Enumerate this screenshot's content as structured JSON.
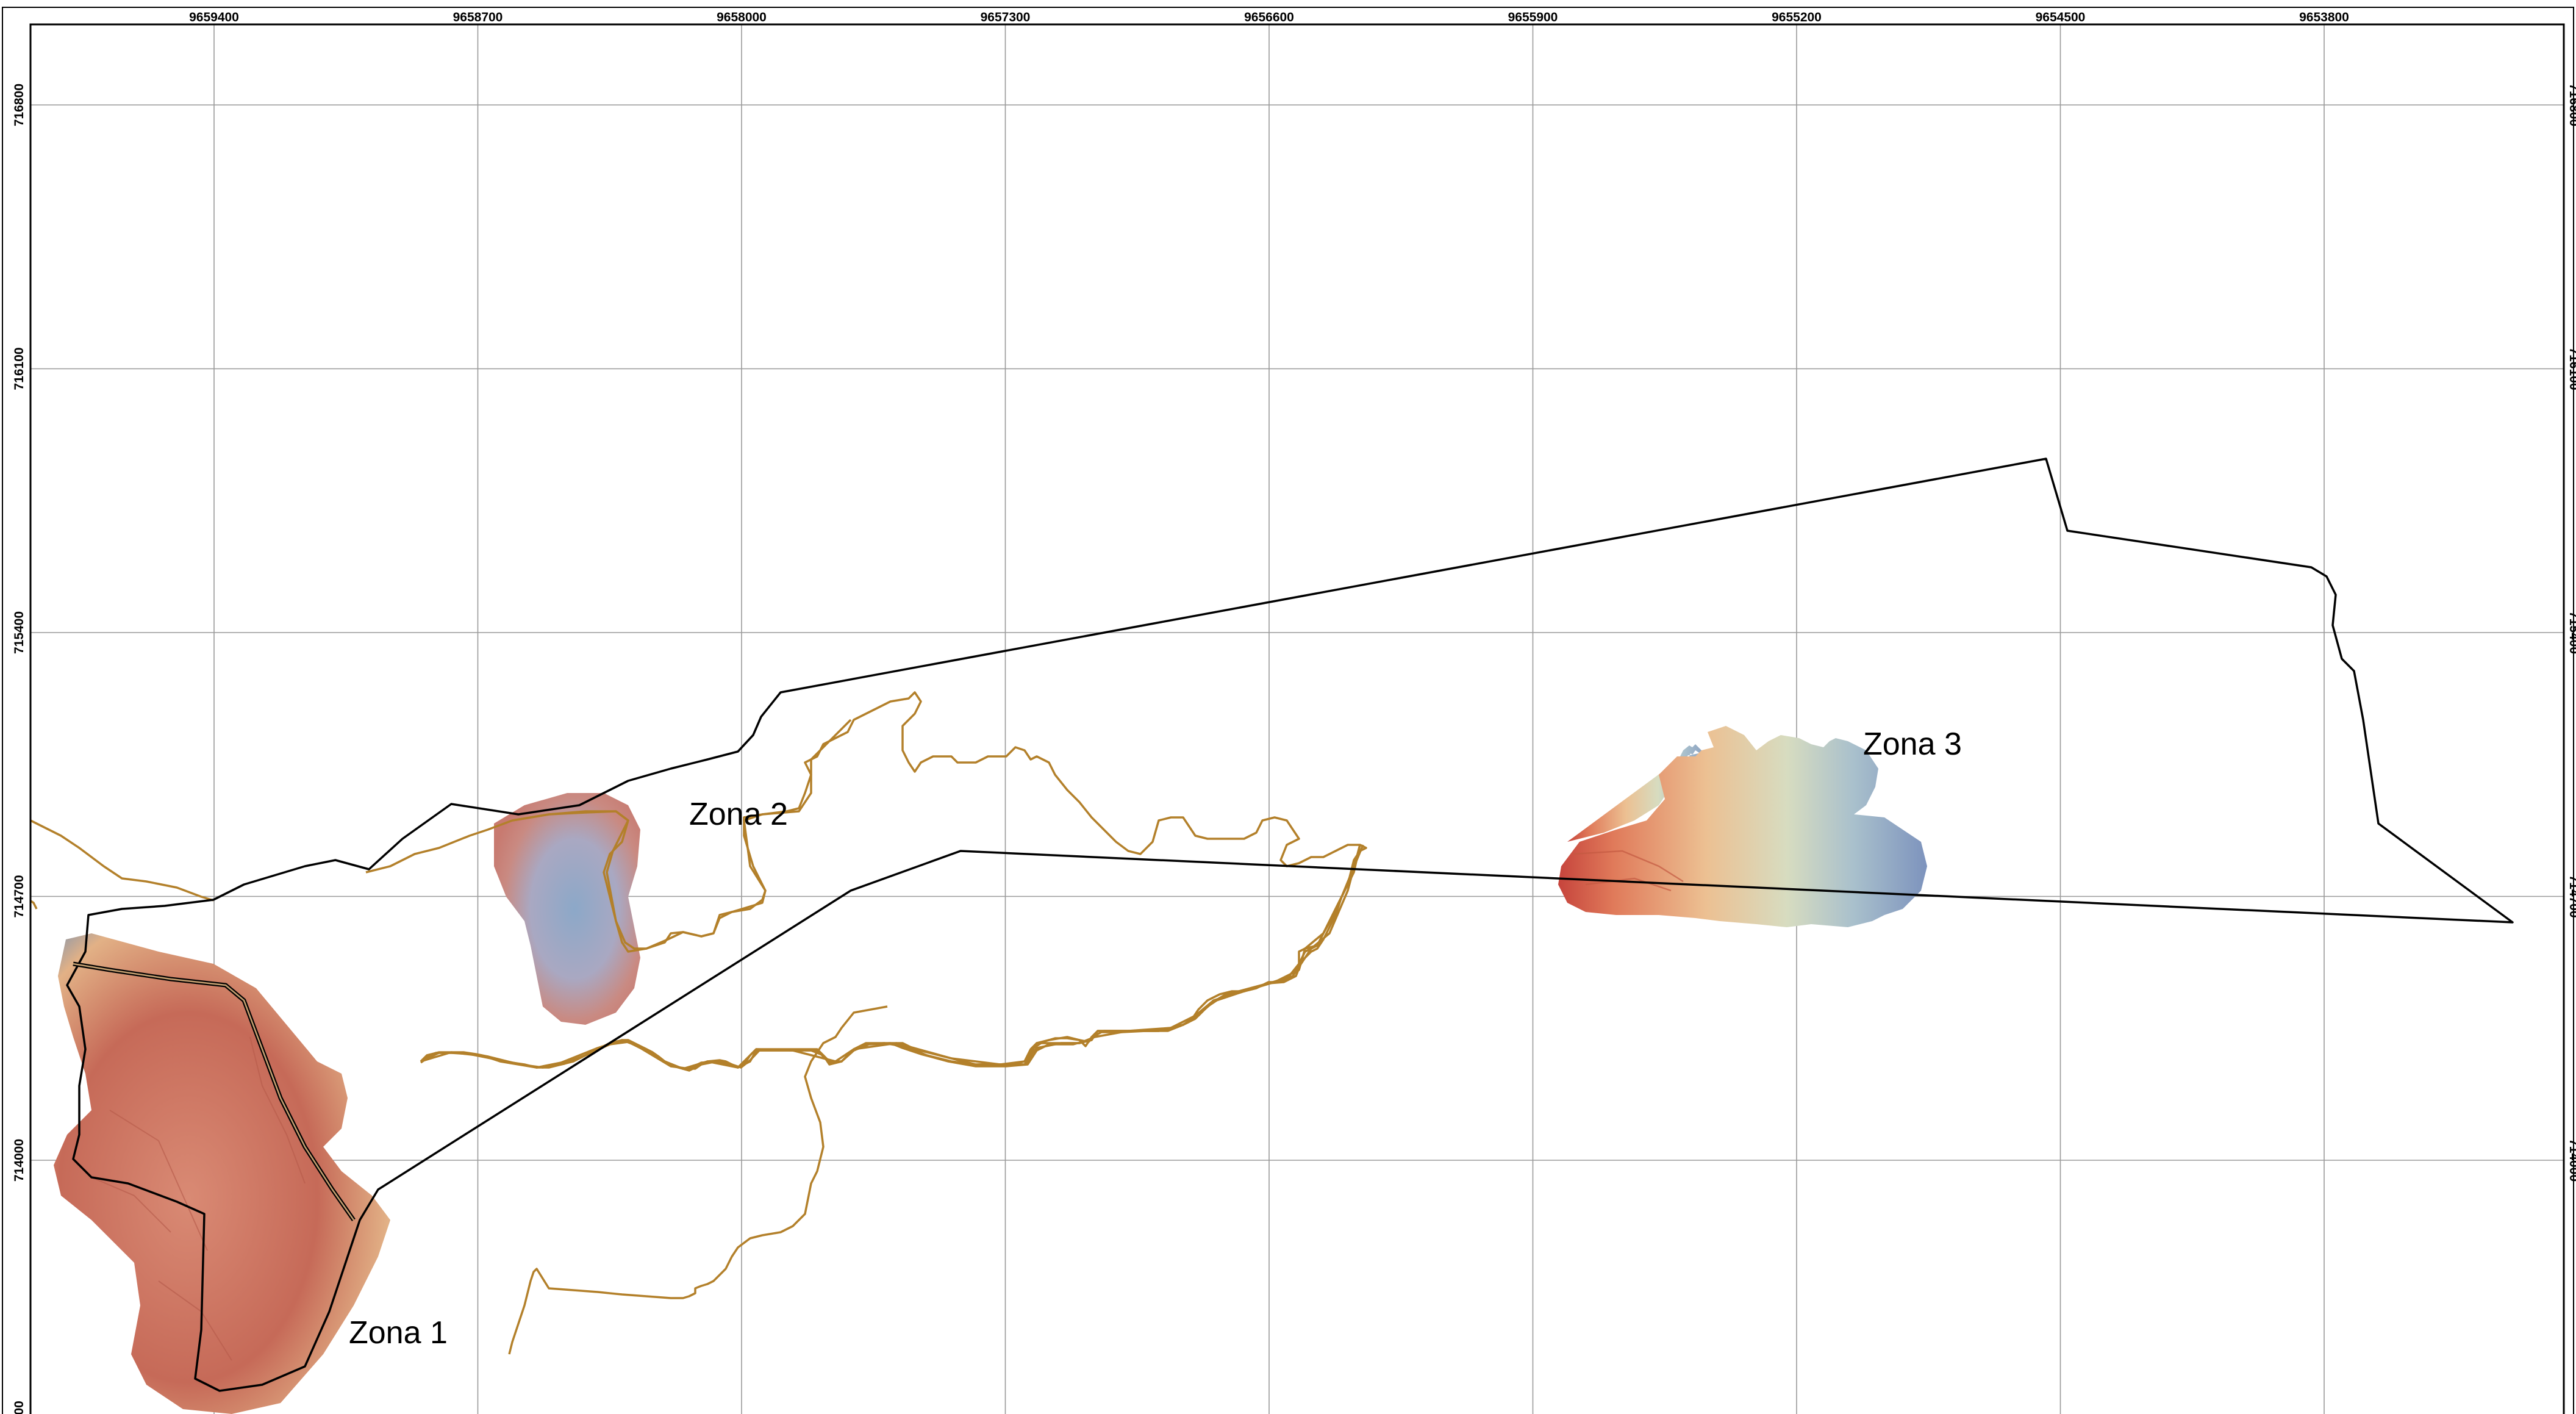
{
  "grid": {
    "x_labels": [
      "9659400",
      "9658700",
      "9658000",
      "9657300",
      "9656600",
      "9655900",
      "9655200",
      "9654500",
      "9653800"
    ],
    "y_labels": [
      "716800",
      "716100",
      "715400",
      "714700",
      "714000"
    ],
    "y_label_bottom_partial": "00"
  },
  "zones": {
    "zona1": "Zona 1",
    "zona2": "Zona 2",
    "zona3": "Zona 3"
  },
  "colors": {
    "boundary": "#000000",
    "track": "#b3802a",
    "dem_high": "#c65a48",
    "dem_mid": "#e8c08a",
    "dem_low": "#6d8fb8"
  }
}
